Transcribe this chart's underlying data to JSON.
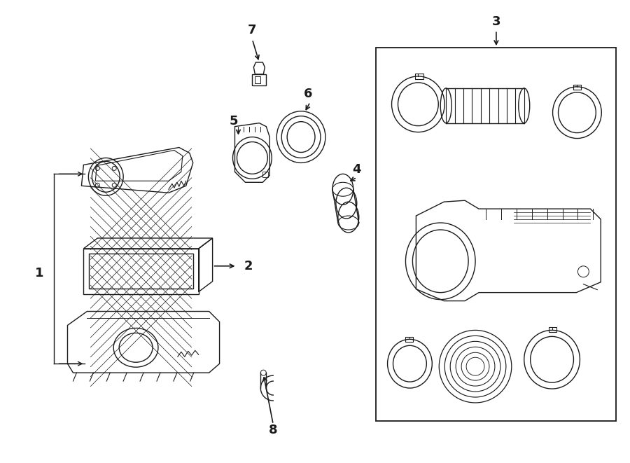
{
  "bg_color": "#ffffff",
  "line_color": "#1a1a1a",
  "lw": 1.0,
  "fig_w": 9.0,
  "fig_h": 6.61,
  "dpi": 100
}
